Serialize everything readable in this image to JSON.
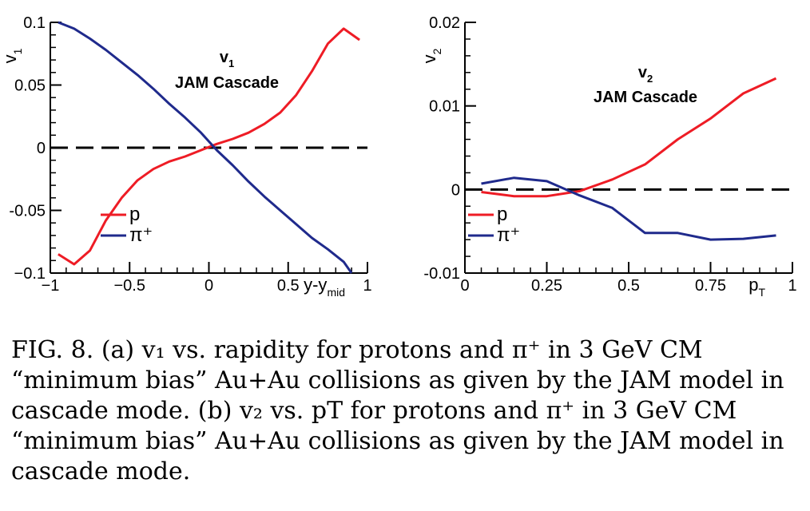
{
  "chart_data": [
    {
      "type": "line",
      "panel": "a",
      "title": "v1",
      "title_sub": "1",
      "subtitle": "JAM Cascade",
      "ylabel": "v",
      "ylabel_sub": "1",
      "xlabel": "y-y",
      "xlabel_sub": "mid",
      "xlim": [
        -1,
        1
      ],
      "ylim": [
        -0.1,
        0.1
      ],
      "xticks": [
        -1,
        -0.5,
        0,
        0.5,
        1
      ],
      "xtick_labels": [
        "−1",
        "−0.5",
        "0",
        "0.5",
        "1"
      ],
      "yticks": [
        -0.1,
        -0.05,
        0,
        0.05,
        0.1
      ],
      "ytick_labels": [
        "−0.1",
        "-0.05",
        "0",
        "0.05",
        "0.1"
      ],
      "zero_line": true,
      "legend_position": "bottom-left",
      "series": [
        {
          "name": "p",
          "color": "#ee1c25",
          "x": [
            -0.95,
            -0.85,
            -0.75,
            -0.65,
            -0.55,
            -0.45,
            -0.35,
            -0.25,
            -0.15,
            -0.05,
            0.05,
            0.15,
            0.25,
            0.35,
            0.45,
            0.55,
            0.65,
            0.75,
            0.85,
            0.95
          ],
          "y": [
            -0.085,
            -0.093,
            -0.082,
            -0.058,
            -0.04,
            -0.026,
            -0.017,
            -0.011,
            -0.007,
            -0.002,
            0.003,
            0.007,
            0.012,
            0.019,
            0.028,
            0.042,
            0.061,
            0.083,
            0.095,
            0.086
          ]
        },
        {
          "name": "π⁺",
          "color": "#1f2a8c",
          "x": [
            -0.95,
            -0.85,
            -0.75,
            -0.65,
            -0.55,
            -0.45,
            -0.35,
            -0.25,
            -0.15,
            -0.05,
            0.05,
            0.15,
            0.25,
            0.35,
            0.45,
            0.55,
            0.65,
            0.75,
            0.85,
            0.9
          ],
          "y": [
            0.1,
            0.095,
            0.087,
            0.078,
            0.068,
            0.058,
            0.047,
            0.035,
            0.024,
            0.012,
            -0.002,
            -0.014,
            -0.027,
            -0.039,
            -0.05,
            -0.061,
            -0.072,
            -0.081,
            -0.091,
            -0.1
          ]
        }
      ]
    },
    {
      "type": "line",
      "panel": "b",
      "title": "v2",
      "title_sub": "2",
      "subtitle": "JAM Cascade",
      "ylabel": "v",
      "ylabel_sub": "2",
      "xlabel": "p",
      "xlabel_sub": "T",
      "xlim": [
        0,
        1
      ],
      "ylim": [
        -0.01,
        0.02
      ],
      "xticks": [
        0,
        0.25,
        0.5,
        0.75,
        1
      ],
      "xtick_labels": [
        "0",
        "0.25",
        "0.5",
        "0.75",
        "1"
      ],
      "yticks": [
        -0.01,
        0,
        0.01,
        0.02
      ],
      "ytick_labels": [
        "-0.01",
        "0",
        "0.01",
        "0.02"
      ],
      "zero_line": true,
      "legend_position": "bottom-left",
      "series": [
        {
          "name": "p",
          "color": "#ee1c25",
          "x": [
            0.05,
            0.15,
            0.25,
            0.35,
            0.45,
            0.55,
            0.65,
            0.75,
            0.85,
            0.95
          ],
          "y": [
            -0.0003,
            -0.0008,
            -0.0008,
            -0.0002,
            0.0012,
            0.003,
            0.006,
            0.0085,
            0.0115,
            0.0133
          ]
        },
        {
          "name": "π⁺",
          "color": "#1f2a8c",
          "x": [
            0.05,
            0.15,
            0.25,
            0.35,
            0.45,
            0.55,
            0.65,
            0.75,
            0.85,
            0.95
          ],
          "y": [
            0.0007,
            0.0014,
            0.001,
            -0.0007,
            -0.0022,
            -0.0052,
            -0.0052,
            -0.006,
            -0.0059,
            -0.0055
          ]
        }
      ]
    }
  ],
  "caption": {
    "label": "FIG. 8.",
    "text": "(a) v₁ vs. rapidity for protons and π⁺ in 3 GeV CM “minimum bias” Au+Au collisions as given by the JAM model in cascade mode. (b) v₂ vs. pT for protons and π⁺ in 3 GeV CM “minimum bias” Au+Au collisions as given by the JAM model in cascade mode."
  }
}
